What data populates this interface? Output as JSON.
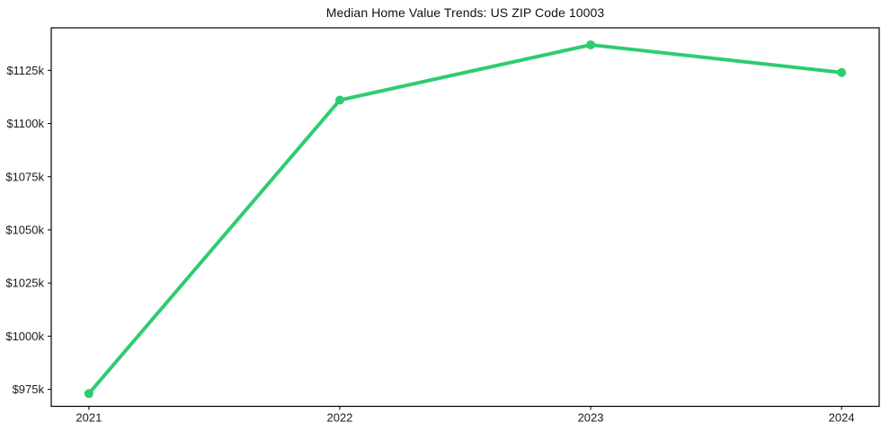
{
  "chart_data": {
    "type": "line",
    "title": "Median Home Value Trends: US ZIP Code 10003",
    "x": [
      2021,
      2022,
      2023,
      2024
    ],
    "values": [
      973,
      1111,
      1137,
      1124
    ],
    "value_unit": "thousand USD",
    "xlabel": "",
    "ylabel": "",
    "xlim": [
      2020.85,
      2024.15
    ],
    "ylim": [
      967,
      1145
    ],
    "xticks": {
      "values": [
        2021,
        2022,
        2023,
        2024
      ],
      "labels": [
        "2021",
        "2022",
        "2023",
        "2024"
      ]
    },
    "yticks": {
      "values": [
        975,
        1000,
        1025,
        1050,
        1075,
        1100,
        1125
      ],
      "labels": [
        "$975k",
        "$1000k",
        "$1025k",
        "$1050k",
        "$1075k",
        "$1100k",
        "$1125k"
      ]
    },
    "grid": false,
    "legend": null,
    "marker": "circle",
    "marker_radius": 5,
    "line_width": 4,
    "line_color": "#2ecc71",
    "axis_color": "#000000",
    "tick_label_color": "#1a1a1a",
    "background_color": "#ffffff"
  }
}
